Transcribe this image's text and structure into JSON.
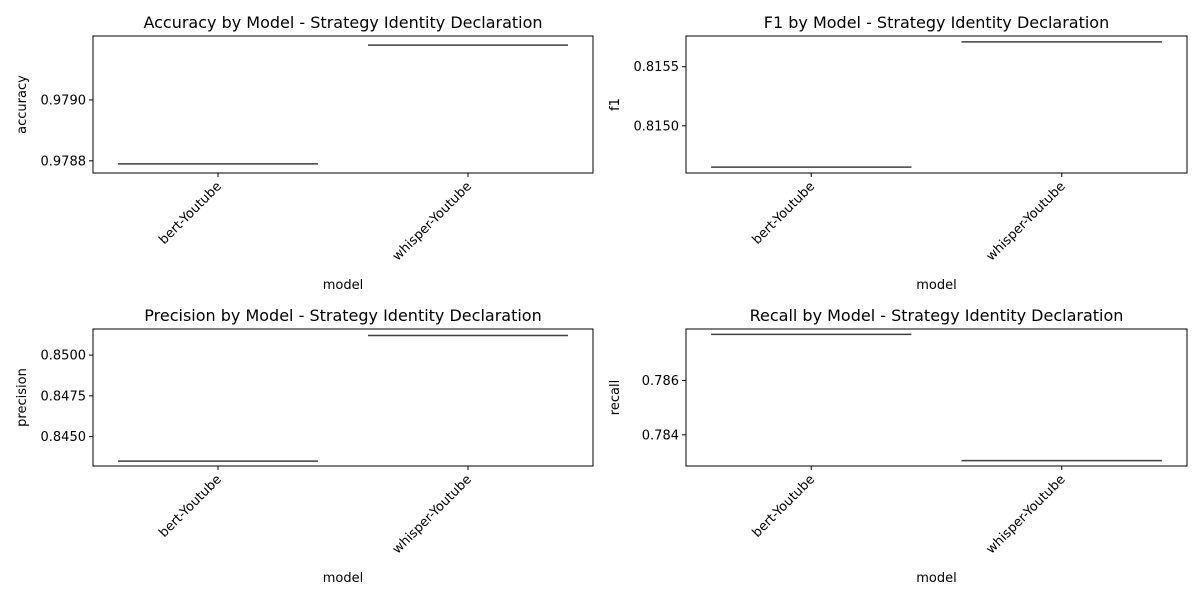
{
  "figure": {
    "background": "#ffffff",
    "box_color": "#3f3f3f"
  },
  "chart_data": [
    {
      "type": "box",
      "title": "Accuracy by Model - Strategy Identity Declaration",
      "xlabel": "model",
      "ylabel": "accuracy",
      "categories": [
        "bert-Youtube",
        "whisper-Youtube"
      ],
      "values": [
        0.97879,
        0.97918
      ],
      "ylim": [
        0.97876,
        0.97921
      ],
      "yticks": [
        0.9788,
        0.979
      ],
      "ytick_labels": [
        "0.9788",
        "0.9790"
      ],
      "grid": false
    },
    {
      "type": "box",
      "title": "F1 by Model - Strategy Identity Declaration",
      "xlabel": "model",
      "ylabel": "f1",
      "categories": [
        "bert-Youtube",
        "whisper-Youtube"
      ],
      "values": [
        0.81465,
        0.81571
      ],
      "ylim": [
        0.8146,
        0.81576
      ],
      "yticks": [
        0.815,
        0.8155
      ],
      "ytick_labels": [
        "0.8150",
        "0.8155"
      ],
      "grid": false
    },
    {
      "type": "box",
      "title": "Precision by Model - Strategy Identity Declaration",
      "xlabel": "model",
      "ylabel": "precision",
      "categories": [
        "bert-Youtube",
        "whisper-Youtube"
      ],
      "values": [
        0.8435,
        0.8512
      ],
      "ylim": [
        0.8432,
        0.8516
      ],
      "yticks": [
        0.845,
        0.8475,
        0.85
      ],
      "ytick_labels": [
        "0.8450",
        "0.8475",
        "0.8500"
      ],
      "grid": false
    },
    {
      "type": "box",
      "title": "Recall by Model - Strategy Identity Declaration",
      "xlabel": "model",
      "ylabel": "recall",
      "categories": [
        "bert-Youtube",
        "whisper-Youtube"
      ],
      "values": [
        0.7877,
        0.78305
      ],
      "ylim": [
        0.78285,
        0.7879
      ],
      "yticks": [
        0.784,
        0.786
      ],
      "ytick_labels": [
        "0.784",
        "0.786"
      ],
      "grid": false
    }
  ]
}
